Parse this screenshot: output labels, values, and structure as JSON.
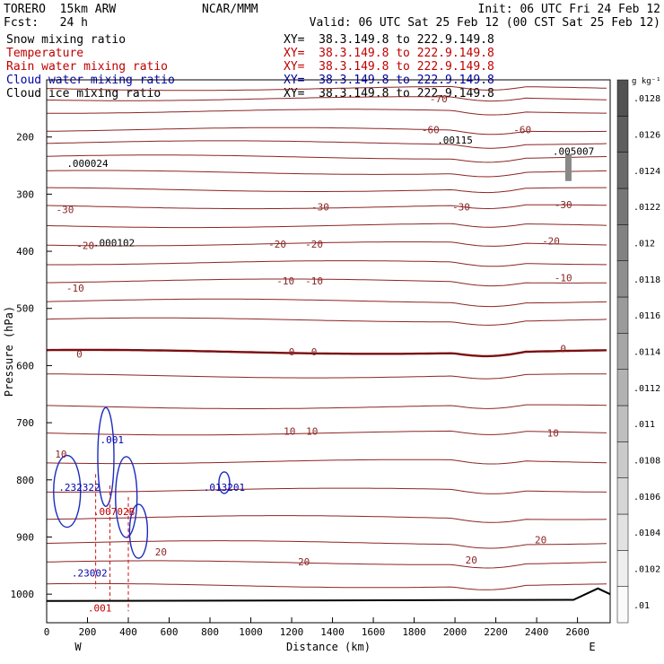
{
  "header": {
    "model": "TORERO  15km ARW",
    "center": "NCAR/MMM",
    "init": "Init: 06 UTC Fri 24 Feb 12",
    "forecast": "Fcst:   24 h",
    "valid": "Valid: 06 UTC Sat 25 Feb 12 (00 CST Sat 25 Feb 12)"
  },
  "fields": [
    {
      "name": "Snow mixing ratio",
      "xy": "XY=  38.3.149.8 to 222.9.149.8",
      "color": "#000000"
    },
    {
      "name": "Temperature",
      "xy": "XY=  38.3.149.8 to 222.9.149.8",
      "color": "#c00000"
    },
    {
      "name": "Rain water mixing ratio",
      "xy": "XY=  38.3.149.8 to 222.9.149.8",
      "color": "#c00000"
    },
    {
      "name": "Cloud water mixing ratio",
      "xy": "XY=  38.3.149.8 to 222.9.149.8",
      "color": "#0000aa"
    },
    {
      "name": "Cloud ice mixing ratio",
      "xy": "XY=  38.3.149.8 to 222.9.149.8",
      "color": "#000000"
    }
  ],
  "chart_data": {
    "type": "contour",
    "xlabel": "Distance (km)",
    "ylabel": "Pressure (hPa)",
    "xlim": [
      0,
      2760
    ],
    "ylim": [
      1050,
      100
    ],
    "x_ticks": [
      0,
      200,
      400,
      600,
      800,
      1000,
      1200,
      1400,
      1600,
      1800,
      2000,
      2200,
      2400,
      2600
    ],
    "y_ticks": [
      200,
      300,
      400,
      500,
      600,
      700,
      800,
      900,
      1000
    ],
    "endpoints": {
      "left": "W",
      "right": "E"
    },
    "colorbar": {
      "unit": "g kg⁻¹",
      "ticks": [
        ".01",
        ".0102",
        ".0104",
        ".0106",
        ".0108",
        ".011",
        ".0112",
        ".0114",
        ".0116",
        ".0118",
        ".012",
        ".0122",
        ".0124",
        ".0126",
        ".0128"
      ]
    },
    "temperature_labels": [
      {
        "text": "-70",
        "x": 1920,
        "p": 133
      },
      {
        "text": "-60",
        "x": 1880,
        "p": 187
      },
      {
        "text": "-60",
        "x": 2330,
        "p": 187
      },
      {
        "text": "-30",
        "x": 90,
        "p": 327
      },
      {
        "text": "-30",
        "x": 1340,
        "p": 322
      },
      {
        "text": "-30",
        "x": 2030,
        "p": 322
      },
      {
        "text": "-30",
        "x": 2530,
        "p": 318
      },
      {
        "text": "-20",
        "x": 190,
        "p": 390
      },
      {
        "text": "-20",
        "x": 1130,
        "p": 387
      },
      {
        "text": "-20",
        "x": 1310,
        "p": 387
      },
      {
        "text": "-20",
        "x": 2470,
        "p": 382
      },
      {
        "text": "-10",
        "x": 140,
        "p": 464
      },
      {
        "text": "-10",
        "x": 1170,
        "p": 452
      },
      {
        "text": "-10",
        "x": 1310,
        "p": 452
      },
      {
        "text": "-10",
        "x": 2530,
        "p": 446
      },
      {
        "text": "0",
        "x": 160,
        "p": 580
      },
      {
        "text": "0",
        "x": 1200,
        "p": 576
      },
      {
        "text": "0",
        "x": 1310,
        "p": 576
      },
      {
        "text": "0",
        "x": 2530,
        "p": 570
      },
      {
        "text": "10",
        "x": 70,
        "p": 755
      },
      {
        "text": "10",
        "x": 1190,
        "p": 715
      },
      {
        "text": "10",
        "x": 1300,
        "p": 715
      },
      {
        "text": "10",
        "x": 2480,
        "p": 718
      },
      {
        "text": "20",
        "x": 560,
        "p": 926
      },
      {
        "text": "20",
        "x": 1260,
        "p": 943
      },
      {
        "text": "20",
        "x": 2080,
        "p": 940
      },
      {
        "text": "20",
        "x": 2420,
        "p": 905
      }
    ],
    "isotherm_lines": [
      {
        "p": 115
      },
      {
        "p": 133
      },
      {
        "p": 155
      },
      {
        "p": 187
      },
      {
        "p": 210
      },
      {
        "p": 235
      },
      {
        "p": 262
      },
      {
        "p": 292
      },
      {
        "p": 322
      },
      {
        "p": 355
      },
      {
        "p": 387
      },
      {
        "p": 420
      },
      {
        "p": 452
      },
      {
        "p": 487
      },
      {
        "p": 520
      },
      {
        "p": 576
      },
      {
        "p": 618
      },
      {
        "p": 672
      },
      {
        "p": 718
      },
      {
        "p": 768
      },
      {
        "p": 818
      },
      {
        "p": 866
      },
      {
        "p": 910
      },
      {
        "p": 945
      },
      {
        "p": 985
      }
    ],
    "maxima": [
      {
        "text": ".000024",
        "x": 200,
        "p": 246,
        "color": "#000000"
      },
      {
        "text": ".000102",
        "x": 330,
        "p": 385,
        "color": "#000000"
      },
      {
        "text": ".00115",
        "x": 2000,
        "p": 205,
        "color": "#000000"
      },
      {
        "text": ".005007",
        "x": 2580,
        "p": 225,
        "color": "#000000"
      },
      {
        "text": ".232322",
        "x": 160,
        "p": 813,
        "color": "#0000aa"
      },
      {
        "text": ".013201",
        "x": 870,
        "p": 813,
        "color": "#0000aa"
      },
      {
        "text": ".23002",
        "x": 210,
        "p": 963,
        "color": "#0000aa"
      },
      {
        "text": ".00702B",
        "x": 330,
        "p": 855,
        "color": "#c00000"
      },
      {
        "text": ".001",
        "x": 320,
        "p": 730,
        "color": "#0000aa"
      },
      {
        "text": ".001",
        "x": 260,
        "p": 1024,
        "color": "#c00000"
      }
    ]
  }
}
